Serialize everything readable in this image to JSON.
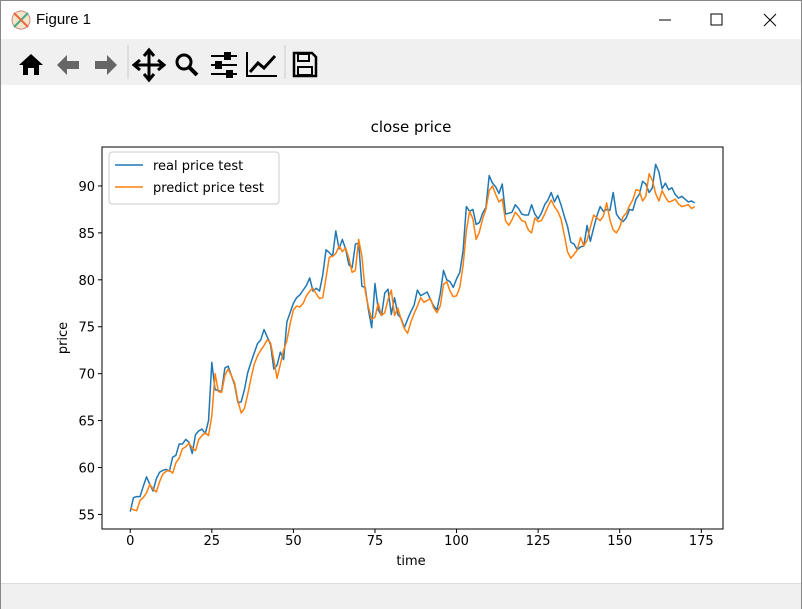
{
  "window": {
    "title": "Figure 1"
  },
  "chart_data": {
    "type": "line",
    "title": "close price",
    "x_label": "time",
    "y_label": "price",
    "xlim": [
      -8.65,
      181.65
    ],
    "ylim": [
      53.45,
      94.15
    ],
    "xticks": [
      0,
      25,
      50,
      75,
      100,
      125,
      150,
      175
    ],
    "yticks": [
      55,
      60,
      65,
      70,
      75,
      80,
      85,
      90
    ],
    "legend": "upper left",
    "series": [
      {
        "name": "real price test",
        "color": "#1f77b4",
        "values": [
          55.3,
          56.8,
          56.9,
          56.9,
          58,
          59,
          58.2,
          57.5,
          58.8,
          59.5,
          59.7,
          59.8,
          59.6,
          61.1,
          61.3,
          62.5,
          62.5,
          63,
          62.7,
          61.5,
          63.5,
          63.9,
          64.1,
          63.6,
          65,
          71.2,
          68.3,
          68.2,
          68.1,
          70.6,
          70.8,
          69.8,
          68.8,
          66.9,
          67,
          68.3,
          70.1,
          71.2,
          72.2,
          73.2,
          73.6,
          74.7,
          73.9,
          73.1,
          70.5,
          70.9,
          72.3,
          71.5,
          75.5,
          76.5,
          77.5,
          78.1,
          78.4,
          78.9,
          79.4,
          80.2,
          78.8,
          79.1,
          78.8,
          80.5,
          83.2,
          82.9,
          82.5,
          85.2,
          83.3,
          84.3,
          83.3,
          81.6,
          81.3,
          83.8,
          83.9,
          79.3,
          79.2,
          76.8,
          74.9,
          79.6,
          76.8,
          76.2,
          78.6,
          79,
          76.3,
          78.1,
          76.3,
          75.9,
          74.9,
          75.8,
          76.6,
          77.3,
          78.9,
          78.3,
          78.5,
          78.7,
          77.9,
          77.2,
          76.8,
          78.5,
          81,
          80,
          79.8,
          79.2,
          80.1,
          80.8,
          83.1,
          87.8,
          87.3,
          87.5,
          85.9,
          86.1,
          87.1,
          87.7,
          91.1,
          90.3,
          89.9,
          89.2,
          90.2,
          87,
          87.1,
          87.2,
          88,
          87.6,
          87,
          86.9,
          86.9,
          88,
          87,
          86.5,
          87.1,
          88,
          88.5,
          89.3,
          88.3,
          89,
          88,
          86.8,
          85.7,
          84,
          83.8,
          83.2,
          83.5,
          83.6,
          85.8,
          84.1,
          85.5,
          86.8,
          87.8,
          87.3,
          87.5,
          87.4,
          89.3,
          87,
          86.5,
          86.2,
          86.6,
          87.5,
          87.4,
          88.6,
          89.1,
          90.5,
          90.2,
          89.3,
          89.8,
          92.3,
          91.5,
          89.7,
          90.3,
          89.6,
          89.8,
          89.1,
          88.7,
          88.9,
          88.6,
          88.3,
          88.4,
          88.2
        ]
      },
      {
        "name": "predict price test",
        "color": "#ff7f0e",
        "values": [
          55.7,
          55.5,
          55.4,
          56.5,
          56.8,
          57.3,
          58.2,
          57.7,
          57.4,
          58.5,
          59.3,
          59.6,
          59.7,
          59.4,
          60.5,
          61,
          62,
          62.2,
          62.6,
          62.1,
          61.8,
          63,
          63.4,
          63.7,
          63.4,
          65.5,
          70,
          68.1,
          68,
          69.8,
          70.5,
          69.8,
          69,
          67.1,
          65.8,
          66.3,
          67.8,
          69.5,
          71,
          71.9,
          72.5,
          73,
          73.6,
          73.3,
          71.5,
          69.5,
          71,
          72.5,
          73.5,
          75.3,
          76.8,
          77.2,
          77.1,
          77.5,
          78.3,
          78.8,
          79.1,
          78.5,
          78,
          78.1,
          80.2,
          82.4,
          82.5,
          82.8,
          83.6,
          83,
          83.4,
          82.3,
          80.8,
          81,
          84.3,
          82.5,
          78.8,
          77.1,
          75.8,
          76,
          77.5,
          76.2,
          76.5,
          77.9,
          78.9,
          76.2,
          77,
          75.8,
          74.8,
          74.3,
          75.5,
          76.4,
          77.2,
          78.1,
          77.6,
          77.8,
          78,
          77,
          76.5,
          77.2,
          79.5,
          79.8,
          78.8,
          78.2,
          78.3,
          79.2,
          81.5,
          85.2,
          87.3,
          86.5,
          84.3,
          85.1,
          86.5,
          87.5,
          89.5,
          90,
          89.1,
          88.3,
          88.6,
          86.3,
          85.8,
          86.4,
          87.2,
          86.8,
          86.3,
          86.2,
          85.3,
          85,
          86.6,
          86.2,
          86.3,
          87,
          87.8,
          88.5,
          87.8,
          87.3,
          86.5,
          84.8,
          83,
          82.3,
          82.7,
          83.2,
          84.5,
          83.6,
          84.2,
          85.6,
          86.9,
          86.6,
          86.3,
          86.8,
          88.2,
          86.4,
          85.3,
          85,
          85.6,
          86.7,
          87.1,
          87.9,
          88.5,
          89.6,
          89.5,
          88.4,
          88.9,
          91.3,
          90.6,
          89.2,
          88.4,
          89.5,
          88.8,
          88.3,
          88.4,
          88.6,
          88.1,
          87.8,
          87.9,
          88,
          87.6,
          87.8
        ]
      }
    ]
  }
}
